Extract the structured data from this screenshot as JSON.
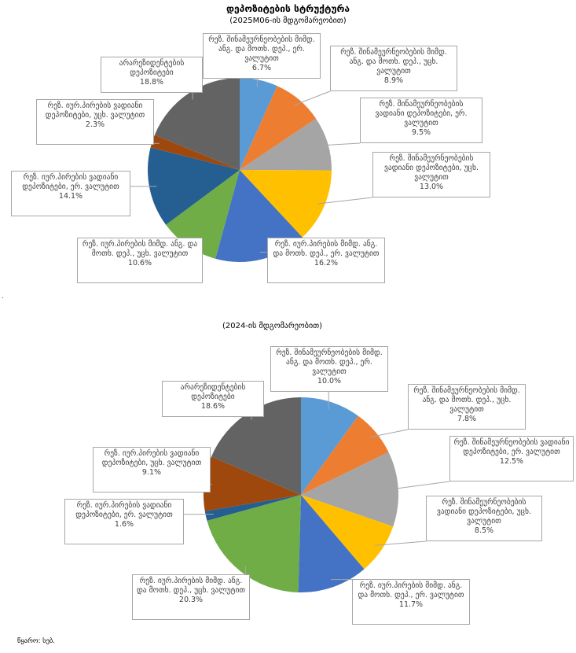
{
  "header": {
    "title": "დეპოზიტების სტრუქტურა",
    "subtitle1": "(2025M06-ის მდგომარეობით)",
    "subtitle2": "(2024-ის მდგომარეობით)"
  },
  "source": "წყარო: სებ.",
  "colors": {
    "s1": "#5b9bd5",
    "s2": "#ed7d31",
    "s3": "#a5a5a5",
    "s4": "#ffc000",
    "s5": "#4472c4",
    "s6": "#70ad47",
    "s7": "#255e91",
    "s8": "#9e480e",
    "s9": "#636363"
  },
  "chart_data": [
    {
      "type": "pie",
      "title": "(2025M06-ის მდგომარეობით)",
      "series": [
        {
          "name": "რეზ. შინამეურნეობების მიმდ. ანგ. და მოთხ. დეპ., ერ. ვალუტით",
          "value": 6.7,
          "label_pct": "6.7%"
        },
        {
          "name": "რეზ. შინამეურნეობების მიმდ. ანგ. და მოთხ. დეპ., უცხ. ვალუტით",
          "value": 8.9,
          "label_pct": "8.9%"
        },
        {
          "name": "რეზ. შინამეურნეობების ვადიანი დეპოზიტები, ერ. ვალუტით",
          "value": 9.5,
          "label_pct": "9.5%"
        },
        {
          "name": "რეზ. შინამეურნეობების ვადიანი დეპოზიტები, უცხ. ვალუტით",
          "value": 13.0,
          "label_pct": "13.0%"
        },
        {
          "name": "რეზ. იურ.პირების მიმდ. ანგ. და მოთხ. დეპ., ერ. ვალუტით",
          "value": 16.2,
          "label_pct": "16.2%"
        },
        {
          "name": "რეზ. იურ.პირების მიმდ. ანგ. და მოთხ. დეპ., უცხ. ვალუტით",
          "value": 10.6,
          "label_pct": "10.6%"
        },
        {
          "name": "რეზ. იურ.პირების ვადიანი დეპოზიტები, ერ. ვალუტით",
          "value": 14.1,
          "label_pct": "14.1%"
        },
        {
          "name": "რეზ. იურ.პირების ვადიანი დეპოზიტები, უცხ. ვალუტით",
          "value": 2.3,
          "label_pct": "2.3%"
        },
        {
          "name": "არარეზიდენტების დეპოზიტები",
          "value": 18.8,
          "label_pct": "18.8%"
        }
      ]
    },
    {
      "type": "pie",
      "title": "(2024-ის მდგომარეობით)",
      "series": [
        {
          "name": "რეზ. შინამეურნეობების მიმდ. ანგ. და მოთხ. დეპ., ერ. ვალუტით",
          "value": 10.0,
          "label_pct": "10.0%"
        },
        {
          "name": "რეზ. შინამეურნეობების მიმდ. ანგ. და მოთხ. დეპ., უცხ. ვალუტით",
          "value": 7.8,
          "label_pct": "7.8%"
        },
        {
          "name": "რეზ. შინამეურნეობების ვადიანი დეპოზიტები, ერ. ვალუტით",
          "value": 12.5,
          "label_pct": "12.5%"
        },
        {
          "name": "რეზ. შინამეურნეობების ვადიანი დეპოზიტები, უცხ. ვალუტით",
          "value": 8.5,
          "label_pct": "8.5%"
        },
        {
          "name": "რეზ. იურ.პირების მიმდ. ანგ. და მოთხ. დეპ., ერ. ვალუტით",
          "value": 11.7,
          "label_pct": "11.7%"
        },
        {
          "name": "რეზ. იურ.პირების მიმდ. ანგ. და მოთხ. დეპ., უცხ. ვალუტით",
          "value": 20.3,
          "label_pct": "20.3%"
        },
        {
          "name": "რეზ. იურ.პირების ვადიანი დეპოზიტები, ერ. ვალუტით",
          "value": 1.6,
          "label_pct": "1.6%"
        },
        {
          "name": "რეზ. იურ.პირების ვადიანი დეპოზიტები, უცხ. ვალუტით",
          "value": 9.1,
          "label_pct": "9.1%"
        },
        {
          "name": "არარეზიდენტების დეპოზიტები",
          "value": 18.6,
          "label_pct": "18.6%"
        }
      ]
    }
  ]
}
